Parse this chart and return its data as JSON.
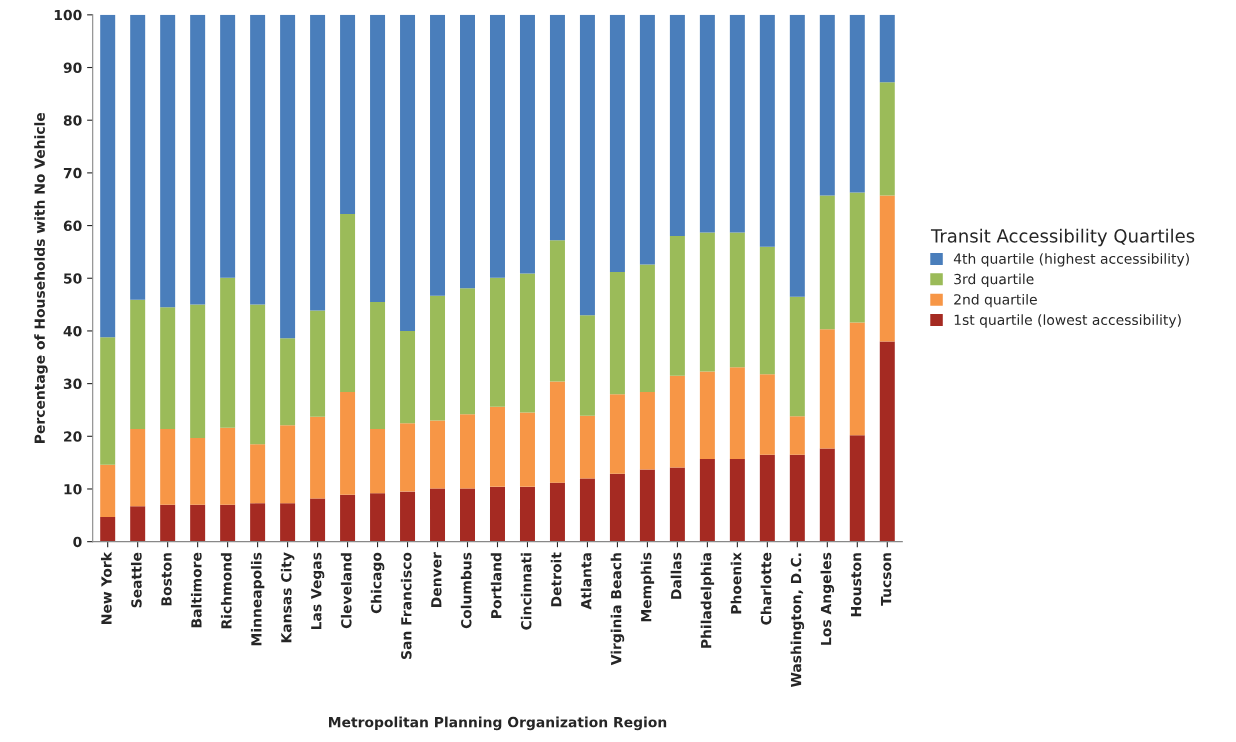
{
  "chart_data": {
    "type": "bar",
    "stacked": true,
    "xlabel": "Metropolitan Planning Organization Region",
    "ylabel": "Percentage of Households with No Vehicle",
    "legend_title": "Transit Accessibility Quartiles",
    "categories": [
      "New York",
      "Seattle",
      "Boston",
      "Baltimore",
      "Richmond",
      "Minneapolis",
      "Kansas City",
      "Las Vegas",
      "Cleveland",
      "Chicago",
      "San Francisco",
      "Denver",
      "Columbus",
      "Portland",
      "Cincinnati",
      "Detroit",
      "Atlanta",
      "Virginia Beach",
      "Memphis",
      "Dallas",
      "Philadelphia",
      "Phoenix",
      "Charlotte",
      "Washington, D.C.",
      "Los Angeles",
      "Houston",
      "Tucson"
    ],
    "series": [
      {
        "name": "1st quartile (lowest accessibility)",
        "color": "#a52a22",
        "values": [
          4.7,
          6.7,
          7.0,
          7.0,
          7.0,
          7.3,
          7.3,
          8.2,
          8.9,
          9.2,
          9.5,
          10.1,
          10.1,
          10.4,
          10.4,
          11.2,
          12.0,
          12.9,
          13.7,
          14.1,
          15.7,
          15.7,
          16.5,
          16.5,
          17.7,
          20.2,
          38.0
        ]
      },
      {
        "name": "2nd quartile",
        "color": "#f79646",
        "values": [
          9.9,
          14.7,
          14.4,
          12.7,
          14.6,
          11.2,
          14.8,
          15.5,
          19.5,
          12.2,
          13.0,
          12.9,
          14.1,
          15.2,
          14.1,
          19.2,
          11.9,
          15.1,
          14.7,
          17.4,
          16.6,
          17.4,
          15.3,
          7.3,
          22.6,
          21.4,
          27.7
        ]
      },
      {
        "name": "3rd quartile",
        "color": "#9bbb59",
        "values": [
          24.2,
          24.5,
          23.1,
          25.3,
          28.5,
          26.5,
          16.5,
          20.2,
          33.8,
          24.1,
          17.5,
          23.7,
          23.9,
          24.5,
          26.4,
          26.8,
          19.1,
          23.2,
          24.2,
          26.5,
          26.4,
          25.6,
          24.2,
          22.7,
          25.4,
          24.7,
          21.5
        ]
      },
      {
        "name": "4th quartile (highest accessibility)",
        "color": "#4a7ebb",
        "values": [
          61.2,
          54.1,
          55.5,
          55.0,
          49.9,
          55.0,
          61.4,
          56.1,
          37.8,
          54.5,
          60.0,
          53.3,
          51.9,
          49.9,
          49.1,
          42.8,
          57.0,
          48.8,
          47.4,
          42.0,
          41.3,
          41.3,
          44.0,
          53.5,
          34.3,
          33.7,
          12.8
        ]
      }
    ],
    "ylim": [
      0,
      100
    ],
    "yticks": [
      0,
      10,
      20,
      30,
      40,
      50,
      60,
      70,
      80,
      90,
      100
    ],
    "grid": false,
    "legend": "right"
  }
}
